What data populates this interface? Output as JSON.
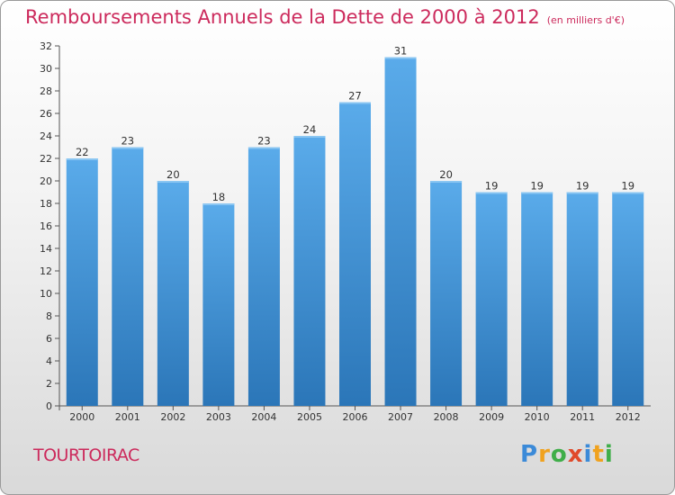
{
  "chart_data": {
    "type": "bar",
    "title": "Remboursements Annuels de la Dette de 2000 à 2012",
    "unit": "(en milliers d'€)",
    "categories": [
      "2000",
      "2001",
      "2002",
      "2003",
      "2004",
      "2005",
      "2006",
      "2007",
      "2008",
      "2009",
      "2010",
      "2011",
      "2012"
    ],
    "values": [
      22,
      23,
      20,
      18,
      23,
      24,
      27,
      31,
      20,
      19,
      19,
      19,
      19
    ],
    "ylim": [
      0,
      32
    ],
    "yticks": [
      0,
      2,
      4,
      6,
      8,
      10,
      12,
      14,
      16,
      18,
      20,
      22,
      24,
      26,
      28,
      30,
      32
    ],
    "grid": false,
    "bar_color": "#3f93d6",
    "bar_color_light": "#5aabea",
    "bar_color_dark": "#2b76b8"
  },
  "commune": "TOURTOIRAC",
  "logo": {
    "text": "Proxiti",
    "letters": [
      {
        "char": "P",
        "color": "#3b8ad8"
      },
      {
        "char": "r",
        "color": "#f0a21e"
      },
      {
        "char": "o",
        "color": "#3fae49"
      },
      {
        "char": "x",
        "color": "#e04a2a"
      },
      {
        "char": "i",
        "color": "#3b8ad8"
      },
      {
        "char": "t",
        "color": "#f0a21e"
      },
      {
        "char": "i",
        "color": "#3fae49"
      }
    ]
  }
}
